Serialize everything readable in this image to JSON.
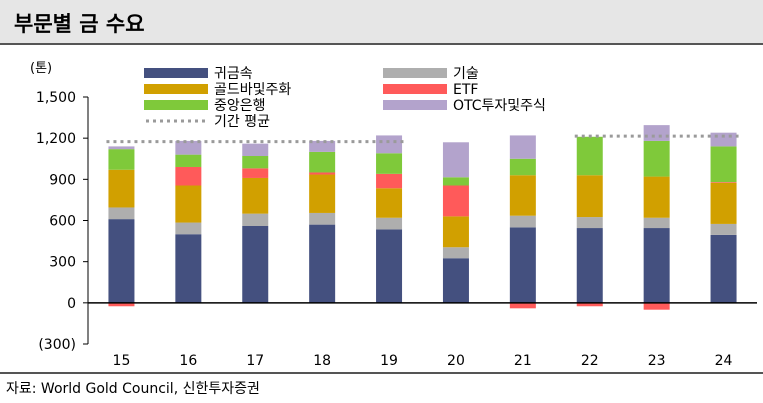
{
  "title": "부문별 금 수요",
  "source": "자료: World Gold Council, 신한투자증권",
  "colors": {
    "jewelry": "#44507f",
    "technology": "#aeaeae",
    "bars_coins": "#d1a000",
    "etf": "#ff5a5a",
    "central_banks": "#7fc93a",
    "otc": "#b3a3cc",
    "average": "#9a9a9a"
  },
  "chart_data": {
    "type": "bar",
    "stacked": true,
    "unit_label": "(톤)",
    "categories": [
      "15",
      "16",
      "17",
      "18",
      "19",
      "20",
      "21",
      "22",
      "23",
      "24"
    ],
    "ylim": [
      -300,
      1500
    ],
    "yticks": [
      -300,
      0,
      300,
      600,
      900,
      1200,
      1500
    ],
    "ytick_labels": [
      "(300)",
      "0",
      "300",
      "600",
      "900",
      "1,200",
      "1,500"
    ],
    "series": [
      {
        "name": "귀금속",
        "key": "jewelry",
        "values": [
          610,
          500,
          560,
          570,
          535,
          325,
          550,
          545,
          545,
          495
        ]
      },
      {
        "name": "기술",
        "key": "technology",
        "values": [
          85,
          85,
          90,
          85,
          85,
          80,
          85,
          80,
          75,
          80
        ]
      },
      {
        "name": "골드바및주화",
        "key": "bars_coins",
        "values": [
          275,
          270,
          260,
          280,
          215,
          225,
          295,
          305,
          300,
          300
        ]
      },
      {
        "name": "ETF",
        "key": "etf",
        "values": [
          -25,
          135,
          70,
          15,
          105,
          225,
          -40,
          -25,
          -50,
          5
        ]
      },
      {
        "name": "중앙은행",
        "key": "central_banks",
        "values": [
          150,
          90,
          90,
          150,
          150,
          60,
          120,
          280,
          260,
          260
        ]
      },
      {
        "name": "OTC투자및주식",
        "key": "otc",
        "values": [
          20,
          100,
          90,
          80,
          130,
          255,
          170,
          0,
          115,
          100
        ]
      }
    ],
    "average_line": {
      "name": "기간 평균",
      "segments": [
        {
          "from": "15",
          "to": "19",
          "value": 1175
        },
        {
          "from": "22",
          "to": "24",
          "value": 1215
        }
      ]
    },
    "legend": {
      "placement": "top",
      "columns": 2,
      "order": [
        "jewelry",
        "technology",
        "bars_coins",
        "etf",
        "central_banks",
        "otc",
        "average"
      ]
    }
  }
}
